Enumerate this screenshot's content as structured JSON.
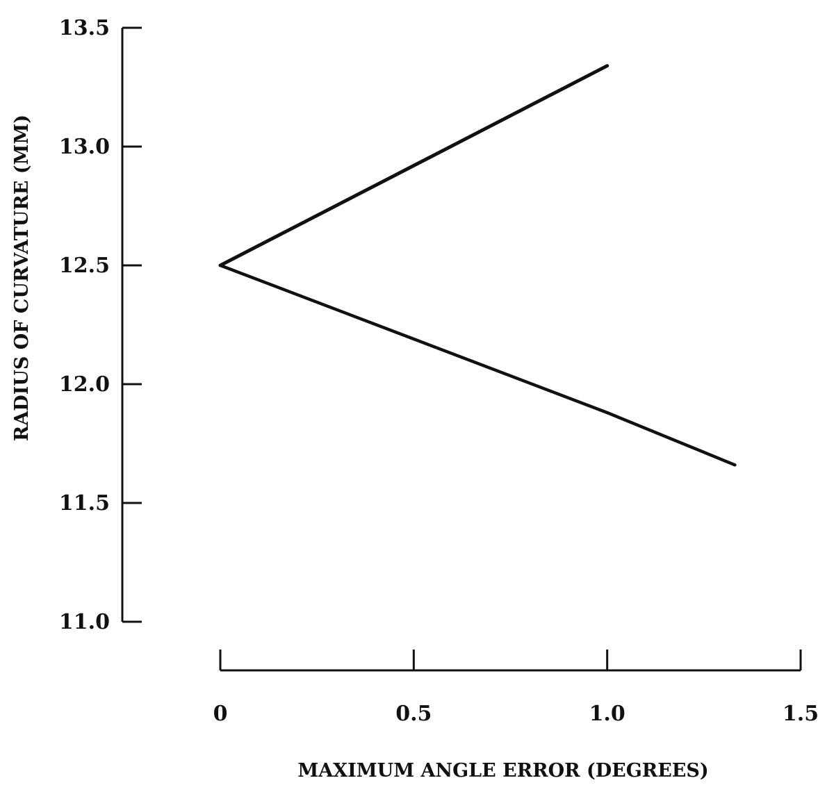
{
  "chart_data": {
    "type": "line",
    "title": "",
    "xlabel": "MAXIMUM ANGLE ERROR (DEGREES)",
    "ylabel": "RADIUS OF CURVATURE (MM)",
    "xlim": [
      0,
      1.5
    ],
    "ylim": [
      11.0,
      13.5
    ],
    "x_ticks": [
      0,
      0.5,
      1.0,
      1.5
    ],
    "x_tick_labels": [
      "0",
      "0.5",
      "1.0",
      "1.5"
    ],
    "y_ticks": [
      11.0,
      11.5,
      12.0,
      12.5,
      13.0,
      13.5
    ],
    "y_tick_labels": [
      "11.0",
      "11.5",
      "12.0",
      "12.5",
      "13.0",
      "13.5"
    ],
    "grid": false,
    "legend": "none",
    "series": [
      {
        "x": [
          0,
          0.5,
          1.0
        ],
        "y": [
          12.5,
          12.92,
          13.34
        ]
      },
      {
        "x": [
          0,
          0.5,
          1.0,
          1.33
        ],
        "y": [
          12.5,
          12.19,
          11.88,
          11.66
        ]
      }
    ],
    "colors": {
      "line": "#111111",
      "axis": "#111111"
    }
  }
}
